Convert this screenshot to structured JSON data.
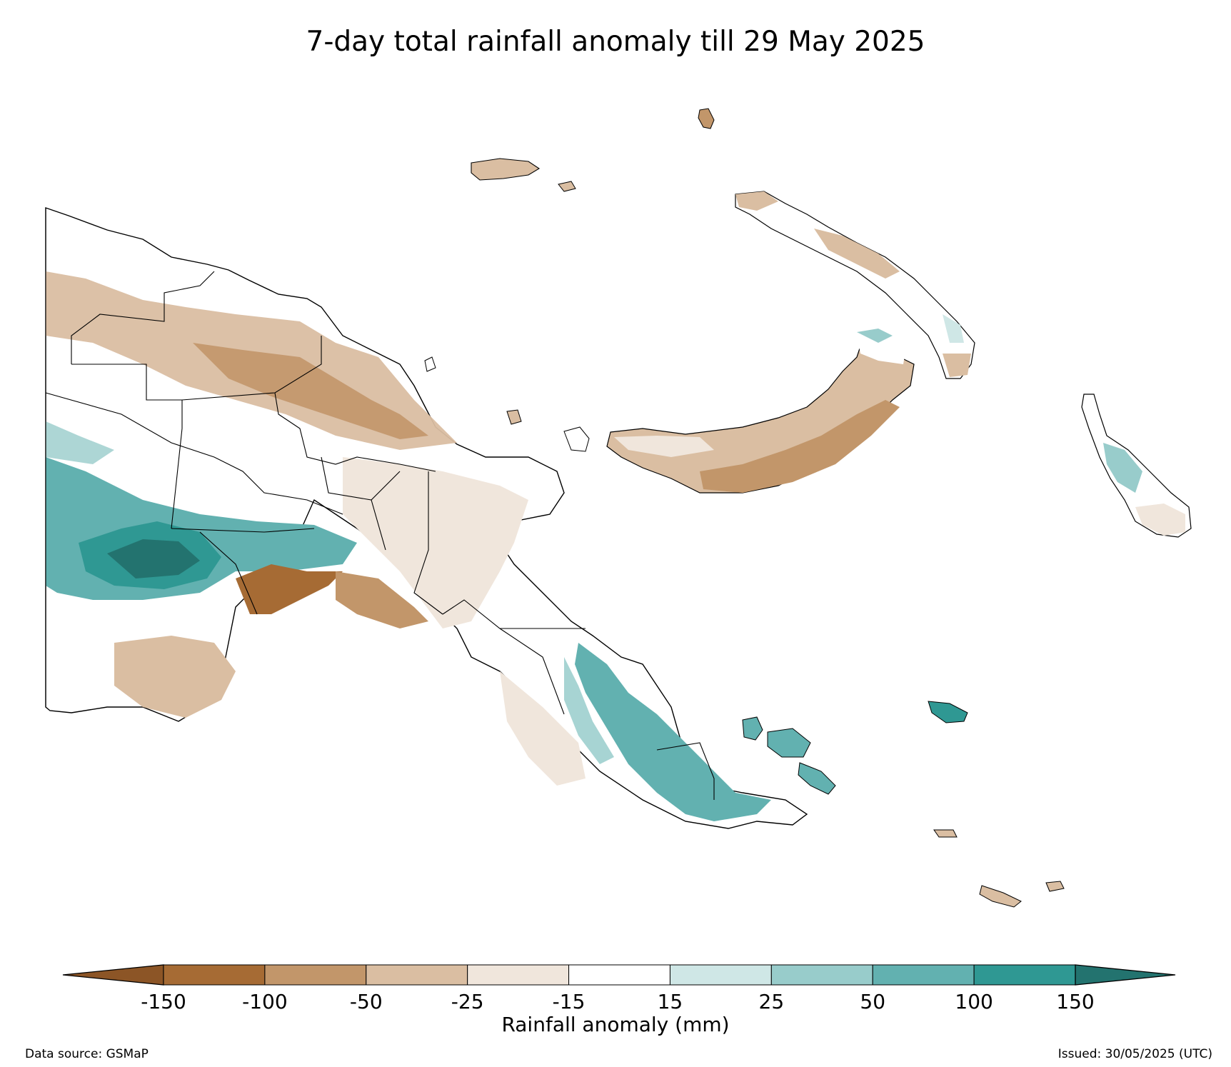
{
  "title": "7-day total rainfall anomaly till 29 May 2025",
  "colorbar": {
    "label": "Rainfall anomaly (mm)",
    "ticks": [
      "-150",
      "-100",
      "-50",
      "-25",
      "-15",
      "15",
      "25",
      "50",
      "100",
      "150"
    ],
    "colors": [
      "#a66b34",
      "#c2966a",
      "#dabea2",
      "#f0e6dc",
      "#ffffff",
      "#cfe7e6",
      "#98cccb",
      "#62b1b0",
      "#2f9893"
    ],
    "under_color": "#8c5526",
    "over_color": "#23736f"
  },
  "footer": {
    "source": "Data source: GSMaP",
    "issued": "Issued: 30/05/2025 (UTC)"
  }
}
